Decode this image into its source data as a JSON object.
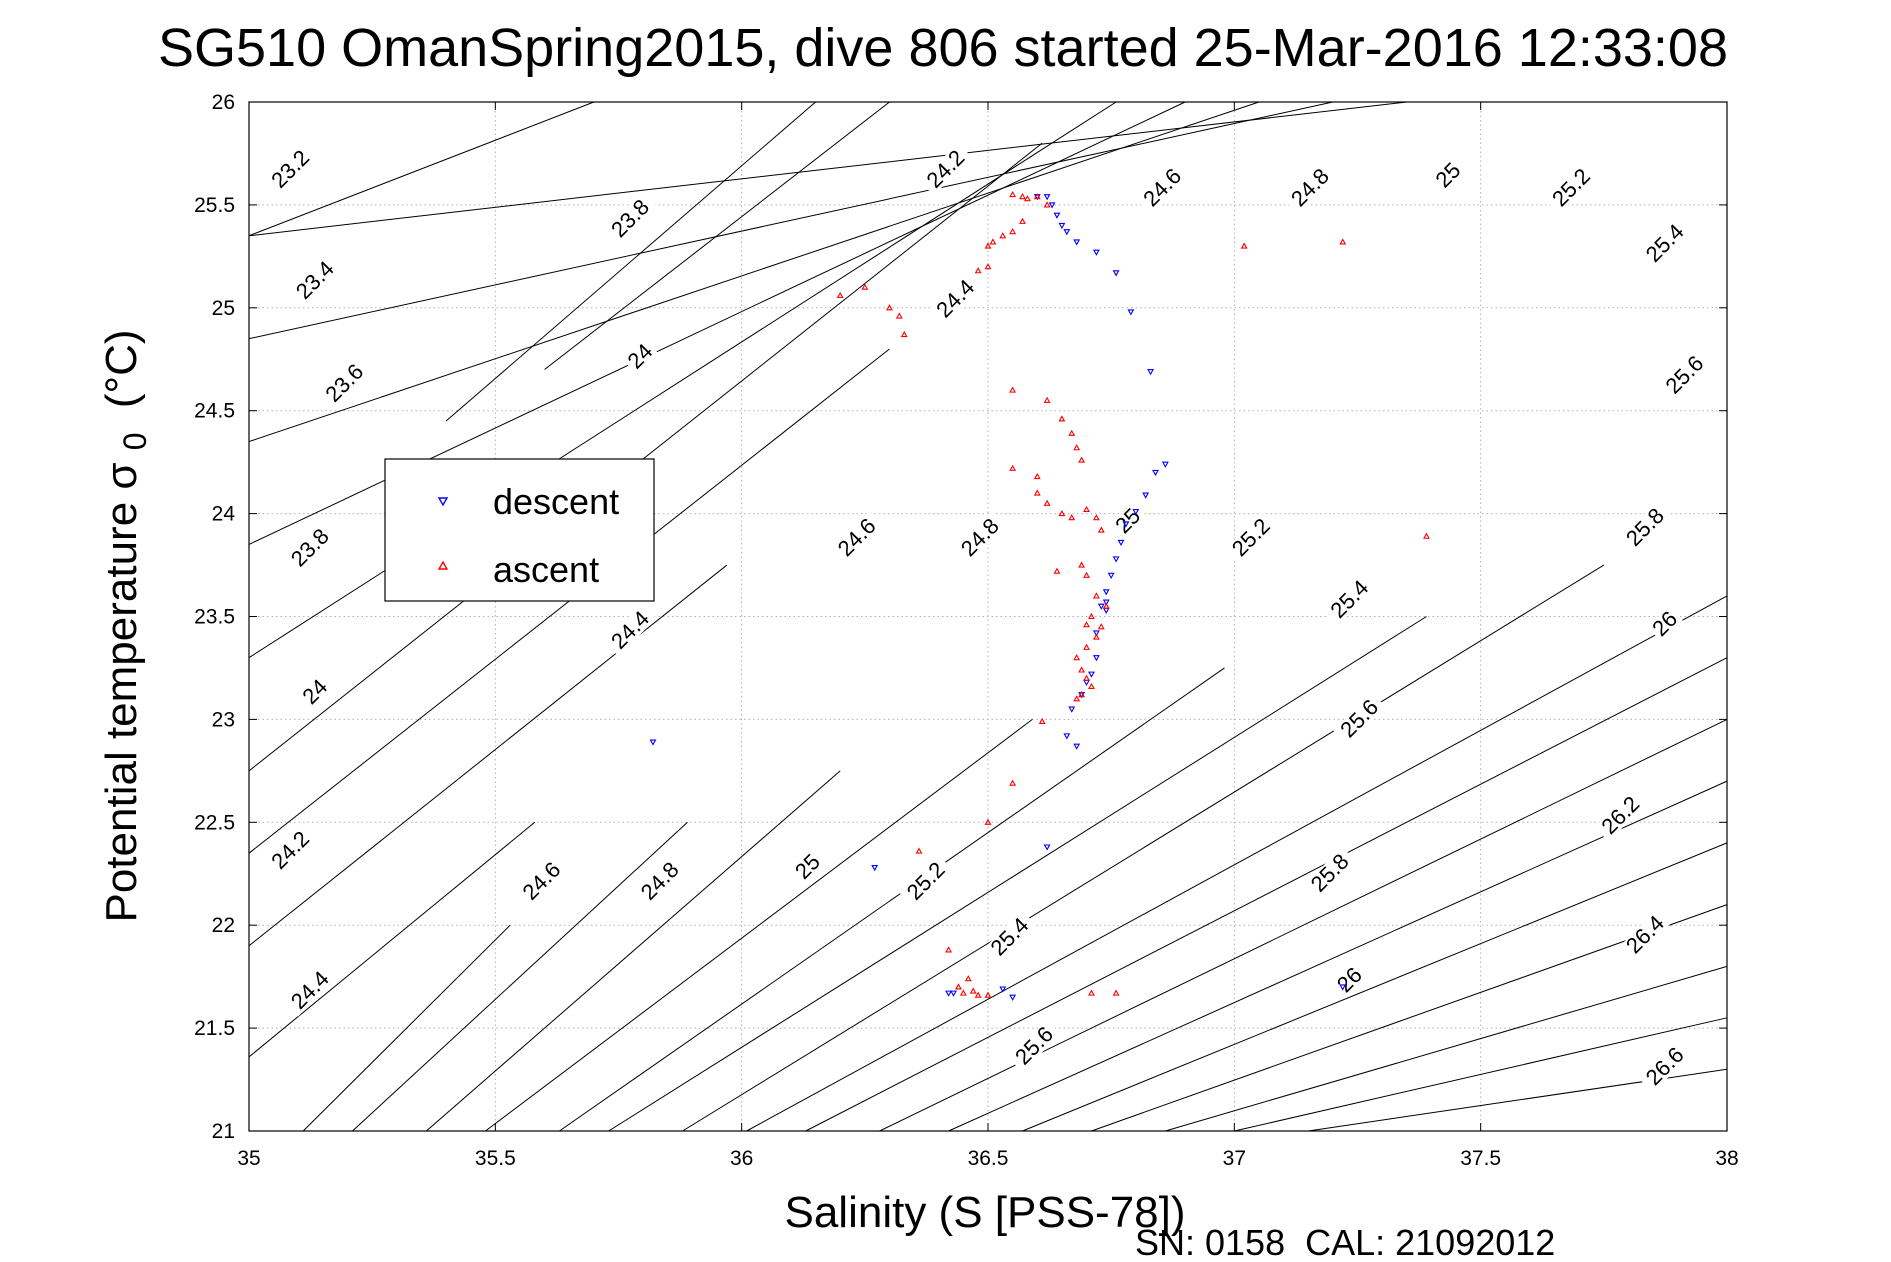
{
  "chart_data": {
    "type": "scatter",
    "title": "SG510 OmanSpring2015, dive 806 started 25-Mar-2016 12:33:08",
    "xlabel": "Salinity (S [PSS-78])",
    "ylabel_main": "Potential temperature σ",
    "ylabel_sub": "0",
    "ylabel_unit": "(°C)",
    "xlim": [
      35,
      38
    ],
    "ylim": [
      21,
      26
    ],
    "xticks": [
      "35",
      "35.5",
      "36",
      "36.5",
      "37",
      "37.5",
      "38"
    ],
    "yticks": [
      "21",
      "21.5",
      "22",
      "22.5",
      "23",
      "23.5",
      "24",
      "24.5",
      "25",
      "25.5",
      "26"
    ],
    "grid": true,
    "legend_position": "upper-left",
    "footer": "SN: 0158  CAL: 21092012",
    "colors": {
      "descent": "#0000ff",
      "ascent": "#ff0000",
      "contour": "#000000",
      "grid": "#b0b0b0"
    },
    "contour_lines": [
      {
        "x": [
          35.11,
          35.53
        ],
        "y": [
          21.0,
          22.0
        ]
      },
      {
        "x": [
          35.21,
          35.89
        ],
        "y": [
          21.0,
          22.5
        ]
      },
      {
        "x": [
          35.36,
          36.2
        ],
        "y": [
          21.0,
          22.75
        ]
      },
      {
        "x": [
          35.48,
          36.59
        ],
        "y": [
          21.0,
          23.0
        ]
      },
      {
        "x": [
          35.63,
          36.98
        ],
        "y": [
          21.0,
          23.25
        ]
      },
      {
        "x": [
          35.73,
          37.39
        ],
        "y": [
          21.0,
          23.5
        ]
      },
      {
        "x": [
          35.88,
          37.75
        ],
        "y": [
          21.0,
          23.75
        ]
      },
      {
        "x": [
          36.01,
          38.0
        ],
        "y": [
          21.0,
          23.6
        ]
      },
      {
        "x": [
          36.13,
          38.0
        ],
        "y": [
          21.0,
          23.3
        ]
      },
      {
        "x": [
          36.28,
          38.0
        ],
        "y": [
          21.0,
          23.0
        ]
      },
      {
        "x": [
          36.42,
          38.0
        ],
        "y": [
          21.0,
          22.7
        ]
      },
      {
        "x": [
          36.57,
          38.0
        ],
        "y": [
          21.0,
          22.4
        ]
      },
      {
        "x": [
          36.71,
          38.0
        ],
        "y": [
          21.0,
          22.1
        ]
      },
      {
        "x": [
          36.86,
          38.0
        ],
        "y": [
          21.0,
          21.8
        ]
      },
      {
        "x": [
          37.0,
          38.0
        ],
        "y": [
          21.0,
          21.55
        ]
      },
      {
        "x": [
          37.15,
          38.0
        ],
        "y": [
          21.0,
          21.3
        ]
      },
      {
        "x": [
          35.0,
          35.58
        ],
        "y": [
          21.36,
          22.5
        ]
      },
      {
        "x": [
          35.0,
          35.97
        ],
        "y": [
          21.9,
          23.75
        ]
      },
      {
        "x": [
          35.0,
          36.3
        ],
        "y": [
          22.35,
          24.8
        ]
      },
      {
        "x": [
          35.0,
          36.61
        ],
        "y": [
          22.75,
          25.8
        ]
      },
      {
        "x": [
          35.0,
          36.76
        ],
        "y": [
          23.3,
          26.0
        ]
      },
      {
        "x": [
          35.0,
          36.9
        ],
        "y": [
          23.85,
          26.0
        ]
      },
      {
        "x": [
          35.0,
          37.05
        ],
        "y": [
          24.35,
          26.0
        ]
      },
      {
        "x": [
          35.0,
          37.2
        ],
        "y": [
          24.85,
          26.0
        ]
      },
      {
        "x": [
          35.0,
          37.35
        ],
        "y": [
          25.35,
          26.0
        ]
      },
      {
        "x": [
          35.0,
          35.7
        ],
        "y": [
          25.35,
          26.0
        ]
      },
      {
        "x": [
          35.6,
          36.3
        ],
        "y": [
          24.7,
          26.0
        ]
      },
      {
        "x": [
          35.4,
          36.15
        ],
        "y": [
          24.45,
          26.0
        ]
      }
    ],
    "contour_labels": [
      {
        "text": "23.2",
        "x": 35.09,
        "y": 25.66,
        "rot": -45
      },
      {
        "text": "23.4",
        "x": 35.14,
        "y": 25.12,
        "rot": -45
      },
      {
        "text": "23.6",
        "x": 35.2,
        "y": 24.62,
        "rot": -45
      },
      {
        "text": "23.8",
        "x": 35.13,
        "y": 23.82,
        "rot": -45
      },
      {
        "text": "24",
        "x": 35.14,
        "y": 23.12,
        "rot": -45
      },
      {
        "text": "24.2",
        "x": 35.09,
        "y": 22.35,
        "rot": -45
      },
      {
        "text": "24.4",
        "x": 35.13,
        "y": 21.67,
        "rot": -45
      },
      {
        "text": "23.8",
        "x": 35.78,
        "y": 25.42,
        "rot": -45
      },
      {
        "text": "24",
        "x": 35.8,
        "y": 24.75,
        "rot": -45
      },
      {
        "text": "24.2",
        "x": 36.42,
        "y": 25.66,
        "rot": -45
      },
      {
        "text": "24.4",
        "x": 36.44,
        "y": 25.03,
        "rot": -45
      },
      {
        "text": "24.4",
        "x": 35.78,
        "y": 23.42,
        "rot": -45
      },
      {
        "text": "24.6",
        "x": 36.24,
        "y": 23.87,
        "rot": -45
      },
      {
        "text": "24.6",
        "x": 35.6,
        "y": 22.2,
        "rot": -45
      },
      {
        "text": "24.6",
        "x": 36.86,
        "y": 25.57,
        "rot": -45
      },
      {
        "text": "24.8",
        "x": 36.49,
        "y": 23.87,
        "rot": -45
      },
      {
        "text": "24.8",
        "x": 35.84,
        "y": 22.2,
        "rot": -45
      },
      {
        "text": "24.8",
        "x": 37.16,
        "y": 25.57,
        "rot": -45
      },
      {
        "text": "25",
        "x": 36.79,
        "y": 23.95,
        "rot": -45
      },
      {
        "text": "25",
        "x": 36.14,
        "y": 22.27,
        "rot": -45
      },
      {
        "text": "25",
        "x": 37.44,
        "y": 25.63,
        "rot": -45
      },
      {
        "text": "25.2",
        "x": 37.04,
        "y": 23.87,
        "rot": -45
      },
      {
        "text": "25.2",
        "x": 36.38,
        "y": 22.2,
        "rot": -45
      },
      {
        "text": "25.2",
        "x": 37.69,
        "y": 25.57,
        "rot": -45
      },
      {
        "text": "25.4",
        "x": 37.24,
        "y": 23.57,
        "rot": -45
      },
      {
        "text": "25.4",
        "x": 36.55,
        "y": 21.93,
        "rot": -45
      },
      {
        "text": "25.4",
        "x": 37.88,
        "y": 25.3,
        "rot": -45
      },
      {
        "text": "25.6",
        "x": 37.26,
        "y": 22.99,
        "rot": -45
      },
      {
        "text": "25.6",
        "x": 36.6,
        "y": 21.4,
        "rot": -45
      },
      {
        "text": "25.6",
        "x": 37.92,
        "y": 24.66,
        "rot": -45
      },
      {
        "text": "25.8",
        "x": 37.2,
        "y": 22.24,
        "rot": -45
      },
      {
        "text": "25.8",
        "x": 37.84,
        "y": 23.92,
        "rot": -45
      },
      {
        "text": "26",
        "x": 37.24,
        "y": 21.72,
        "rot": -45
      },
      {
        "text": "26",
        "x": 37.88,
        "y": 23.45,
        "rot": -45
      },
      {
        "text": "26.2",
        "x": 37.79,
        "y": 22.52,
        "rot": -45
      },
      {
        "text": "26.4",
        "x": 37.84,
        "y": 21.94,
        "rot": -45
      },
      {
        "text": "26.6",
        "x": 37.88,
        "y": 21.3,
        "rot": -45
      }
    ],
    "series": [
      {
        "name": "descent",
        "marker": "v",
        "x": [
          36.62,
          36.6,
          36.63,
          36.64,
          36.65,
          36.66,
          36.68,
          36.72,
          36.76,
          36.79,
          36.83,
          36.86,
          36.84,
          36.82,
          36.8,
          36.78,
          36.77,
          36.76,
          36.75,
          36.74,
          36.74,
          36.73,
          36.74,
          36.72,
          36.72,
          36.71,
          36.7,
          36.69,
          36.67,
          36.68,
          36.66,
          35.82,
          36.27,
          36.62,
          36.42,
          36.43,
          36.53,
          36.55,
          37.22
        ],
        "y": [
          25.54,
          25.54,
          25.5,
          25.45,
          25.4,
          25.37,
          25.32,
          25.27,
          25.17,
          24.98,
          24.69,
          24.24,
          24.2,
          24.09,
          24.01,
          23.95,
          23.86,
          23.78,
          23.7,
          23.62,
          23.57,
          23.55,
          23.53,
          23.42,
          23.3,
          23.22,
          23.18,
          23.12,
          23.05,
          22.87,
          22.92,
          22.89,
          22.28,
          22.38,
          21.67,
          21.67,
          21.69,
          21.65,
          21.7
        ]
      },
      {
        "name": "ascent",
        "marker": "^",
        "x": [
          36.55,
          36.57,
          36.58,
          36.6,
          36.62,
          36.57,
          36.55,
          36.53,
          36.51,
          36.5,
          36.2,
          36.25,
          36.3,
          36.32,
          36.33,
          36.48,
          36.5,
          36.55,
          36.62,
          36.65,
          36.67,
          36.68,
          36.69,
          36.55,
          36.6,
          36.6,
          36.62,
          36.65,
          36.67,
          36.7,
          36.72,
          36.73,
          36.69,
          36.64,
          36.7,
          36.72,
          36.74,
          36.71,
          36.7,
          36.73,
          36.72,
          36.7,
          36.68,
          36.69,
          36.7,
          36.71,
          36.69,
          36.68,
          36.61,
          36.55,
          36.5,
          36.36,
          36.42,
          36.44,
          36.45,
          36.47,
          36.5,
          36.46,
          36.48,
          36.71,
          36.76,
          37.02,
          37.22,
          37.39
        ],
        "y": [
          25.55,
          25.54,
          25.53,
          25.54,
          25.5,
          25.42,
          25.37,
          25.35,
          25.32,
          25.3,
          25.06,
          25.1,
          25.0,
          24.96,
          24.87,
          25.18,
          25.2,
          24.6,
          24.55,
          24.46,
          24.39,
          24.32,
          24.26,
          24.22,
          24.18,
          24.1,
          24.05,
          24.0,
          23.98,
          24.02,
          23.98,
          23.92,
          23.75,
          23.72,
          23.7,
          23.6,
          23.55,
          23.5,
          23.46,
          23.45,
          23.4,
          23.35,
          23.3,
          23.24,
          23.2,
          23.16,
          23.12,
          23.1,
          22.99,
          22.69,
          22.5,
          22.36,
          21.88,
          21.7,
          21.67,
          21.68,
          21.66,
          21.74,
          21.66,
          21.67,
          21.67,
          25.3,
          25.32,
          23.89
        ]
      }
    ]
  }
}
